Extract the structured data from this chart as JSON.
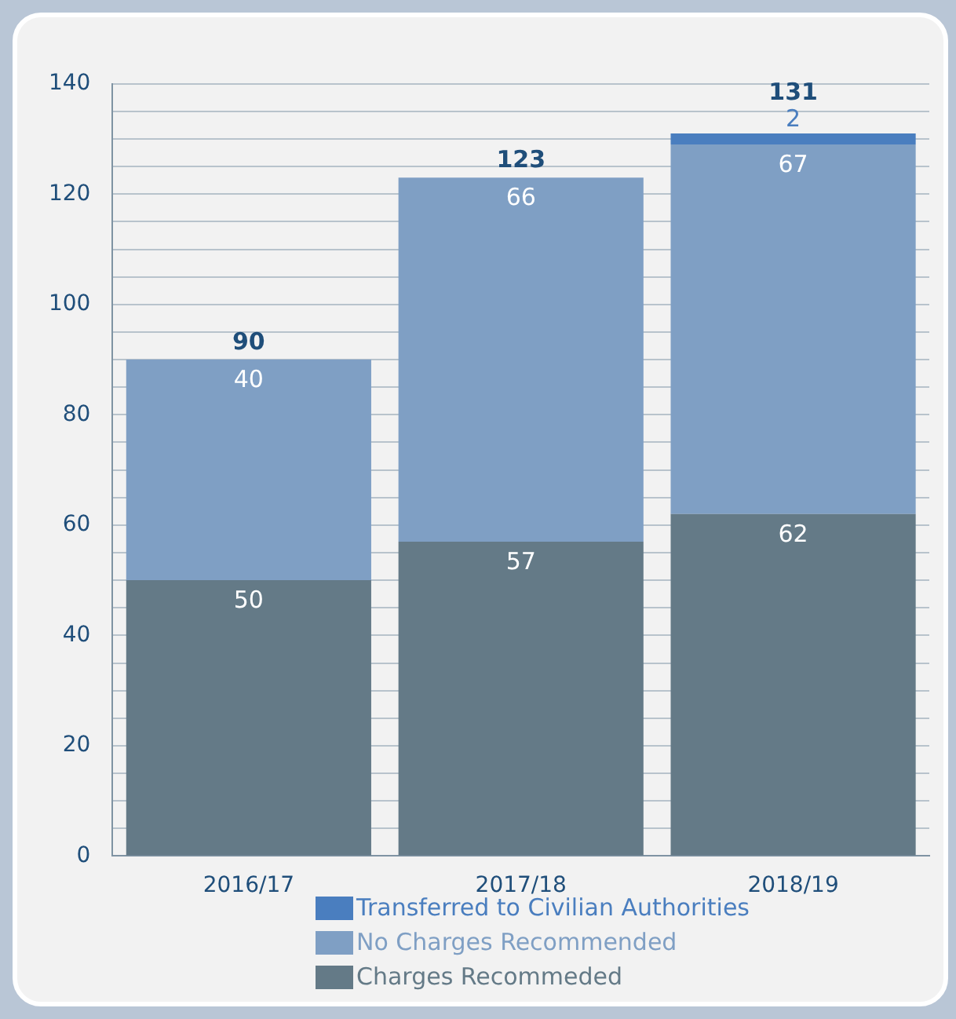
{
  "chart_data": {
    "type": "bar",
    "stacked": true,
    "categories": [
      "2016/17",
      "2017/18",
      "2018/19"
    ],
    "series": [
      {
        "name": "Charges Recommeded",
        "color": "#647a87",
        "values": [
          50,
          57,
          62
        ]
      },
      {
        "name": "No Charges Recommended",
        "color": "#7f9fc4",
        "values": [
          40,
          66,
          67
        ]
      },
      {
        "name": "Transferred to Civilian Authorities",
        "color": "#4a7ebf",
        "values": [
          null,
          null,
          2
        ]
      }
    ],
    "ylim": [
      0,
      140
    ],
    "yticks": [
      0,
      {
        "value": 5,
        "label": null
      },
      {
        "value": 10,
        "label": null
      },
      {
        "value": 15,
        "label": null
      },
      20,
      {
        "value": 25,
        "label": null
      },
      {
        "value": 30,
        "label": null
      },
      {
        "value": 35,
        "label": null
      },
      40,
      {
        "value": 45,
        "label": null
      },
      {
        "value": 50,
        "label": null
      },
      {
        "value": 55,
        "label": null
      },
      60,
      {
        "value": 65,
        "label": null
      },
      {
        "value": 70,
        "label": null
      },
      {
        "value": 75,
        "label": null
      },
      80,
      {
        "value": 85,
        "label": null
      },
      {
        "value": 90,
        "label": null
      },
      {
        "value": 95,
        "label": null
      },
      100,
      {
        "value": 105,
        "label": null
      },
      {
        "value": 110,
        "label": null
      },
      {
        "value": 115,
        "label": null
      },
      120,
      {
        "value": 125,
        "label": null
      },
      {
        "value": 130,
        "label": null
      },
      {
        "value": 135,
        "label": null
      },
      140
    ],
    "grid": "y",
    "data_labels": true,
    "totals": [
      "90",
      "123",
      "131"
    ],
    "legend": "bottom"
  }
}
